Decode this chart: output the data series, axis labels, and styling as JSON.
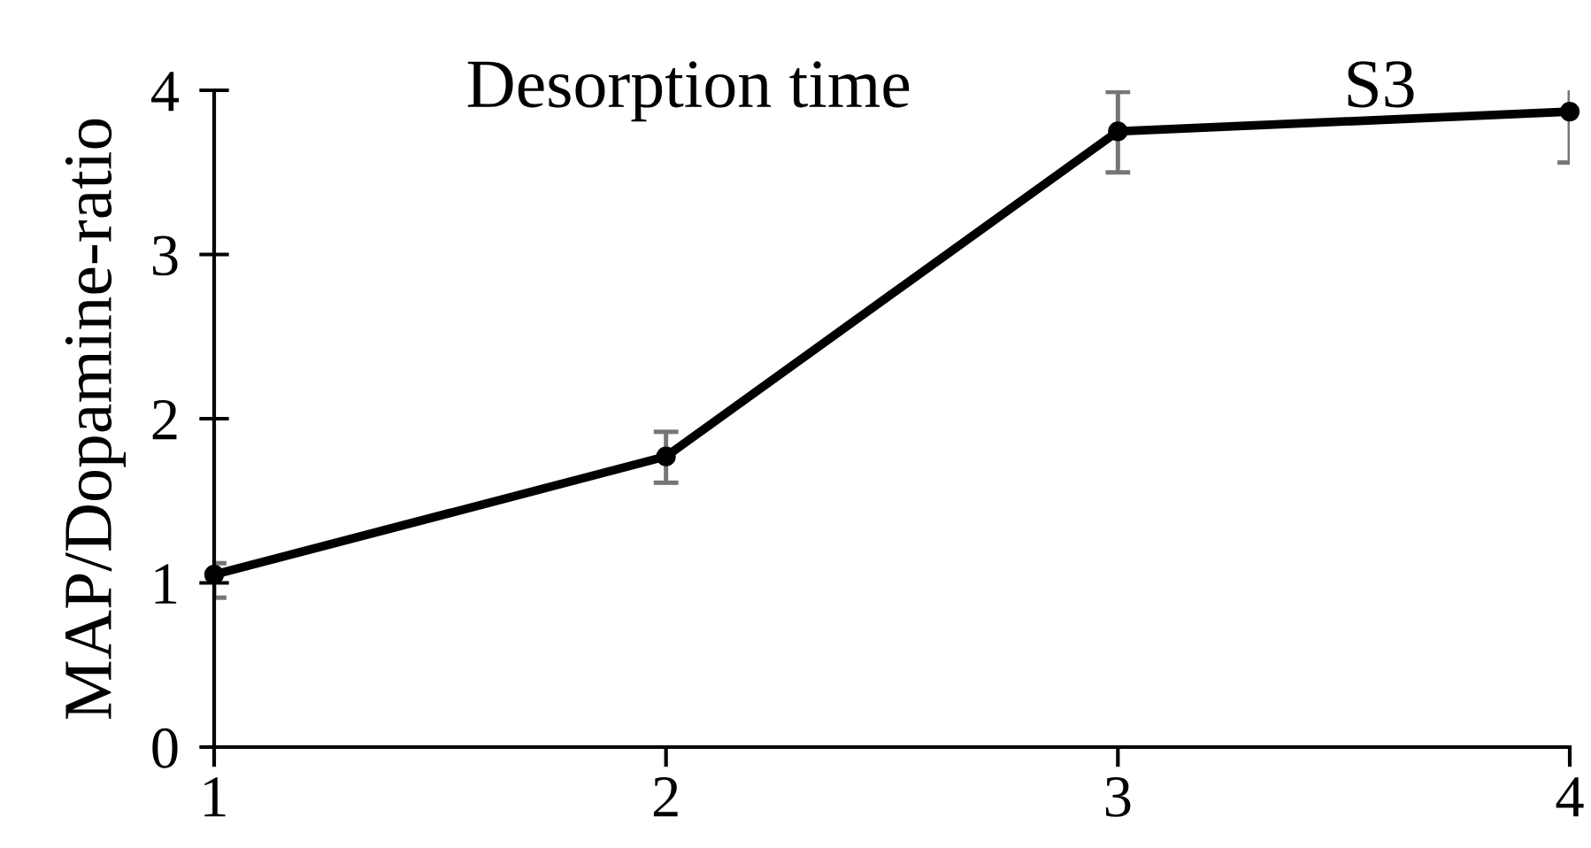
{
  "chart_data": {
    "type": "line",
    "title": "Desorption time",
    "annotations": [
      "S3"
    ],
    "ylabel": "MAP/Dopamine-ratio",
    "x": [
      1,
      2,
      3,
      4
    ],
    "series": [
      {
        "color": "#000000",
        "values": [
          1.05,
          1.77,
          3.75,
          3.87
        ],
        "errors": [
          [
            0.91,
            1.12
          ],
          [
            1.61,
            1.92
          ],
          [
            3.5,
            3.99
          ],
          [
            3.56,
            4.03
          ]
        ]
      }
    ],
    "xlim": [
      1,
      4
    ],
    "xticks": [
      1,
      2,
      3,
      4
    ],
    "ylim": [
      0,
      4
    ],
    "yticks": [
      0,
      1,
      2,
      3,
      4
    ],
    "grid": false,
    "legend": false,
    "marker": "circle",
    "line_style": "solid"
  }
}
